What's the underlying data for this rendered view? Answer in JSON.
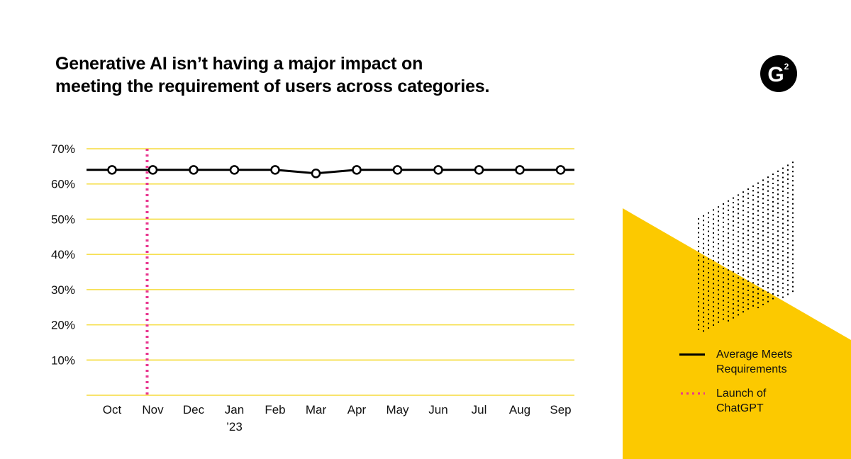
{
  "title_lines": [
    "Generative AI isn’t having a major impact on",
    "meeting the requirement of users across categories."
  ],
  "logo": {
    "icon": "g2-logo-icon",
    "text": "G",
    "superscript": "2",
    "color": "#000000"
  },
  "colors": {
    "gridline": "#f5dc3c",
    "series_line": "#000000",
    "marker_fill": "#ffffff",
    "launch_line": "#e8368f",
    "accent_yellow": "#fcc900",
    "dots": "#000000"
  },
  "legend": [
    {
      "key": "series",
      "lines": [
        "Average Meets",
        "Requirements"
      ]
    },
    {
      "key": "launch",
      "lines": [
        "Launch of",
        "ChatGPT"
      ]
    }
  ],
  "chart_data": {
    "type": "line",
    "title": "Generative AI isn’t having a major impact on meeting the requirement of users across categories.",
    "categories": [
      "Oct",
      "Nov",
      "Dec",
      "Jan",
      "Feb",
      "Mar",
      "Apr",
      "May",
      "Jun",
      "Jul",
      "Aug",
      "Sep"
    ],
    "category_sublabels": {
      "Jan": "’23"
    },
    "series": [
      {
        "name": "Average Meets Requirements",
        "values": [
          64,
          64,
          64,
          64,
          64,
          63,
          64,
          64,
          64,
          64,
          64,
          64
        ]
      }
    ],
    "y_ticks": [
      "70%",
      "60%",
      "50%",
      "40%",
      "30%",
      "20%",
      "10%"
    ],
    "y_tick_values": [
      70,
      60,
      50,
      40,
      30,
      20,
      10
    ],
    "ylim": [
      0,
      70
    ],
    "annotations": [
      {
        "type": "vertical-line",
        "at_category": "Nov",
        "label": "Launch of ChatGPT"
      }
    ],
    "grid": true,
    "legend_position": "bottom-right"
  }
}
